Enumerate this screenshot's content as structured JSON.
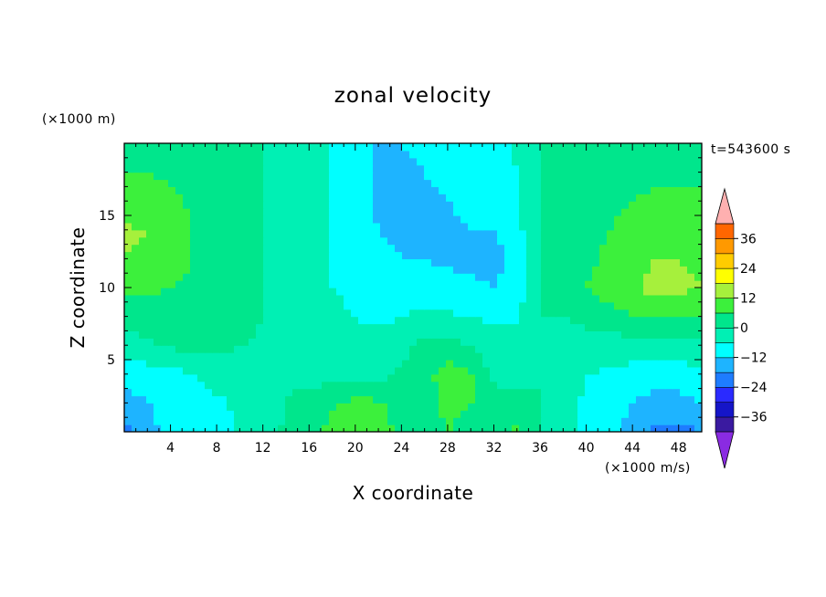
{
  "chart_data": {
    "type": "heatmap",
    "title": "zonal velocity",
    "xlabel": "X coordinate",
    "ylabel": "Z coordinate",
    "x_unit": "(×1000 m/s)",
    "y_unit": "(×1000 m)",
    "time_label": "t=543600 s",
    "xlim": [
      0,
      50
    ],
    "ylim": [
      0,
      20
    ],
    "x_ticks": [
      4,
      8,
      12,
      16,
      20,
      24,
      28,
      32,
      36,
      40,
      44,
      48
    ],
    "y_ticks": [
      5,
      10,
      15
    ],
    "colorbar": {
      "min": -42,
      "max": 42,
      "step": 6,
      "tick_values": [
        36,
        24,
        12,
        0,
        -12,
        -24,
        -36
      ],
      "tick_labels": [
        "36",
        "24",
        "12",
        "0",
        "−12",
        "−24",
        "−36"
      ],
      "colors": [
        "#8a2be2",
        "#3a1aa0",
        "#1515c8",
        "#2a2aff",
        "#1e7cff",
        "#1eb4ff",
        "#00ffff",
        "#00f0b4",
        "#00e68c",
        "#3cf03c",
        "#a6f03c",
        "#ffff00",
        "#ffcc00",
        "#ff9900",
        "#ff6600",
        "#ff3300",
        "#e80000",
        "#ffb0b0"
      ]
    },
    "grid_nx": 26,
    "grid_nz": 11,
    "grid_x": [
      0,
      2,
      4,
      6,
      8,
      10,
      12,
      14,
      16,
      18,
      20,
      22,
      24,
      26,
      28,
      30,
      32,
      34,
      36,
      38,
      40,
      42,
      44,
      46,
      48,
      50
    ],
    "grid_z": [
      0,
      2,
      4,
      6,
      8,
      10,
      12,
      14,
      16,
      18,
      20
    ],
    "values": [
      [
        -20,
        -14,
        -10,
        -9,
        -7,
        -6,
        -3,
        1,
        4,
        8,
        10,
        9,
        4,
        2,
        6,
        3,
        5,
        7,
        0,
        -4,
        -8,
        -10,
        -14,
        -20,
        -20,
        -18
      ],
      [
        -14,
        -12,
        -10,
        -8,
        -7,
        -5,
        -2,
        0,
        2,
        5,
        8,
        7,
        4,
        3,
        8,
        6,
        4,
        2,
        0,
        -4,
        -7,
        -9,
        -12,
        -14,
        -14,
        -12
      ],
      [
        -10,
        -9,
        -8,
        -6,
        -4,
        -3,
        -1,
        -1,
        -2,
        -2,
        -3,
        -2,
        1,
        4,
        9,
        7,
        -2,
        -3,
        0,
        -3,
        -6,
        -7,
        -8,
        -9,
        -9,
        -8
      ],
      [
        -2,
        -1,
        1,
        3,
        2,
        0,
        -1,
        -1,
        -3,
        -4,
        -5,
        -4,
        -2,
        2,
        2,
        0,
        -3,
        -4,
        0,
        -2,
        -3,
        -3,
        -3,
        -2,
        -2,
        -1
      ],
      [
        2,
        3,
        4,
        4,
        3,
        2,
        0,
        -2,
        -4,
        -5,
        -6,
        -7,
        -6,
        -5,
        -5,
        -6,
        -7,
        -7,
        0,
        0,
        2,
        4,
        6,
        7,
        7,
        6
      ],
      [
        8,
        7,
        6,
        5,
        4,
        3,
        0,
        -2,
        -4,
        -6,
        -7,
        -8,
        -8,
        -9,
        -10,
        -11,
        -12,
        -9,
        0,
        3,
        6,
        9,
        11,
        14,
        13,
        12
      ],
      [
        12,
        11,
        8,
        6,
        5,
        3,
        0,
        -3,
        -5,
        -6,
        -8,
        -10,
        -12,
        -12,
        -13,
        -13,
        -14,
        -10,
        0,
        2,
        5,
        7,
        10,
        12,
        12,
        11
      ],
      [
        13,
        12,
        9,
        6,
        4,
        2,
        0,
        -3,
        -5,
        -6,
        -9,
        -12,
        -13,
        -13,
        -13,
        -12,
        -12,
        -8,
        0,
        2,
        4,
        6,
        9,
        11,
        11,
        10
      ],
      [
        8,
        8,
        7,
        5,
        4,
        2,
        0,
        -3,
        -5,
        -6,
        -10,
        -13,
        -13,
        -13,
        -12,
        -11,
        -11,
        -7,
        0,
        2,
        3,
        4,
        6,
        7,
        7,
        7
      ],
      [
        6,
        6,
        5,
        4,
        3,
        1,
        0,
        -3,
        -5,
        -6,
        -10,
        -13,
        -13,
        -12,
        -11,
        -10,
        -9,
        -6,
        0,
        2,
        3,
        3,
        4,
        5,
        5,
        5
      ],
      [
        5,
        5,
        4,
        3,
        3,
        1,
        0,
        -3,
        -5,
        -6,
        -10,
        -13,
        -12,
        -11,
        -10,
        -9,
        -8,
        -5,
        0,
        2,
        3,
        3,
        3,
        4,
        4,
        4
      ]
    ]
  }
}
